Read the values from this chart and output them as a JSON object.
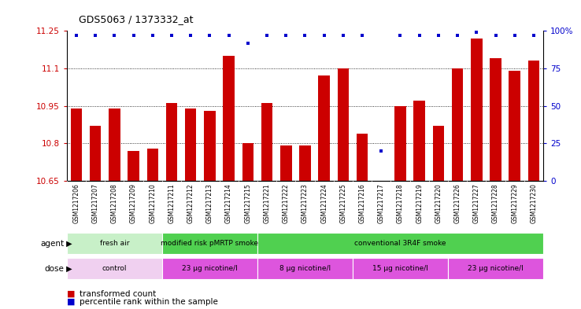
{
  "title": "GDS5063 / 1373332_at",
  "samples": [
    "GSM1217206",
    "GSM1217207",
    "GSM1217208",
    "GSM1217209",
    "GSM1217210",
    "GSM1217211",
    "GSM1217212",
    "GSM1217213",
    "GSM1217214",
    "GSM1217215",
    "GSM1217221",
    "GSM1217222",
    "GSM1217223",
    "GSM1217224",
    "GSM1217225",
    "GSM1217216",
    "GSM1217217",
    "GSM1217218",
    "GSM1217219",
    "GSM1217220",
    "GSM1217226",
    "GSM1217227",
    "GSM1217228",
    "GSM1217229",
    "GSM1217230"
  ],
  "values": [
    10.94,
    10.87,
    10.94,
    10.77,
    10.78,
    10.96,
    10.94,
    10.93,
    11.15,
    10.8,
    10.96,
    10.79,
    10.79,
    11.07,
    11.1,
    10.84,
    10.65,
    10.95,
    10.97,
    10.87,
    11.1,
    11.22,
    11.14,
    11.09,
    11.13
  ],
  "percentile_ranks": [
    97,
    97,
    97,
    97,
    97,
    97,
    97,
    97,
    97,
    92,
    97,
    97,
    97,
    97,
    97,
    97,
    20,
    97,
    97,
    97,
    97,
    99,
    97,
    97,
    97
  ],
  "bar_color": "#cc0000",
  "dot_color": "#0000cc",
  "ylim_left": [
    10.65,
    11.25
  ],
  "yticks_left": [
    10.65,
    10.8,
    10.95,
    11.1,
    11.25
  ],
  "yticks_right": [
    0,
    25,
    50,
    75,
    100
  ],
  "grid_lines": [
    10.8,
    10.95,
    11.1
  ],
  "agent_groups": [
    {
      "label": "fresh air",
      "start": 0,
      "end": 5,
      "color": "#c8f0c8"
    },
    {
      "label": "modified risk pMRTP smoke",
      "start": 5,
      "end": 10,
      "color": "#50d050"
    },
    {
      "label": "conventional 3R4F smoke",
      "start": 10,
      "end": 25,
      "color": "#50d050"
    }
  ],
  "dose_groups": [
    {
      "label": "control",
      "start": 0,
      "end": 5,
      "color": "#f0d0f0"
    },
    {
      "label": "23 μg nicotine/l",
      "start": 5,
      "end": 10,
      "color": "#dd55dd"
    },
    {
      "label": "8 μg nicotine/l",
      "start": 10,
      "end": 15,
      "color": "#dd55dd"
    },
    {
      "label": "15 μg nicotine/l",
      "start": 15,
      "end": 20,
      "color": "#dd55dd"
    },
    {
      "label": "23 μg nicotine/l",
      "start": 20,
      "end": 25,
      "color": "#dd55dd"
    }
  ],
  "legend_items": [
    {
      "label": "transformed count",
      "color": "#cc0000"
    },
    {
      "label": "percentile rank within the sample",
      "color": "#0000cc"
    }
  ],
  "bar_width": 0.6,
  "agent_label": "agent",
  "dose_label": "dose"
}
